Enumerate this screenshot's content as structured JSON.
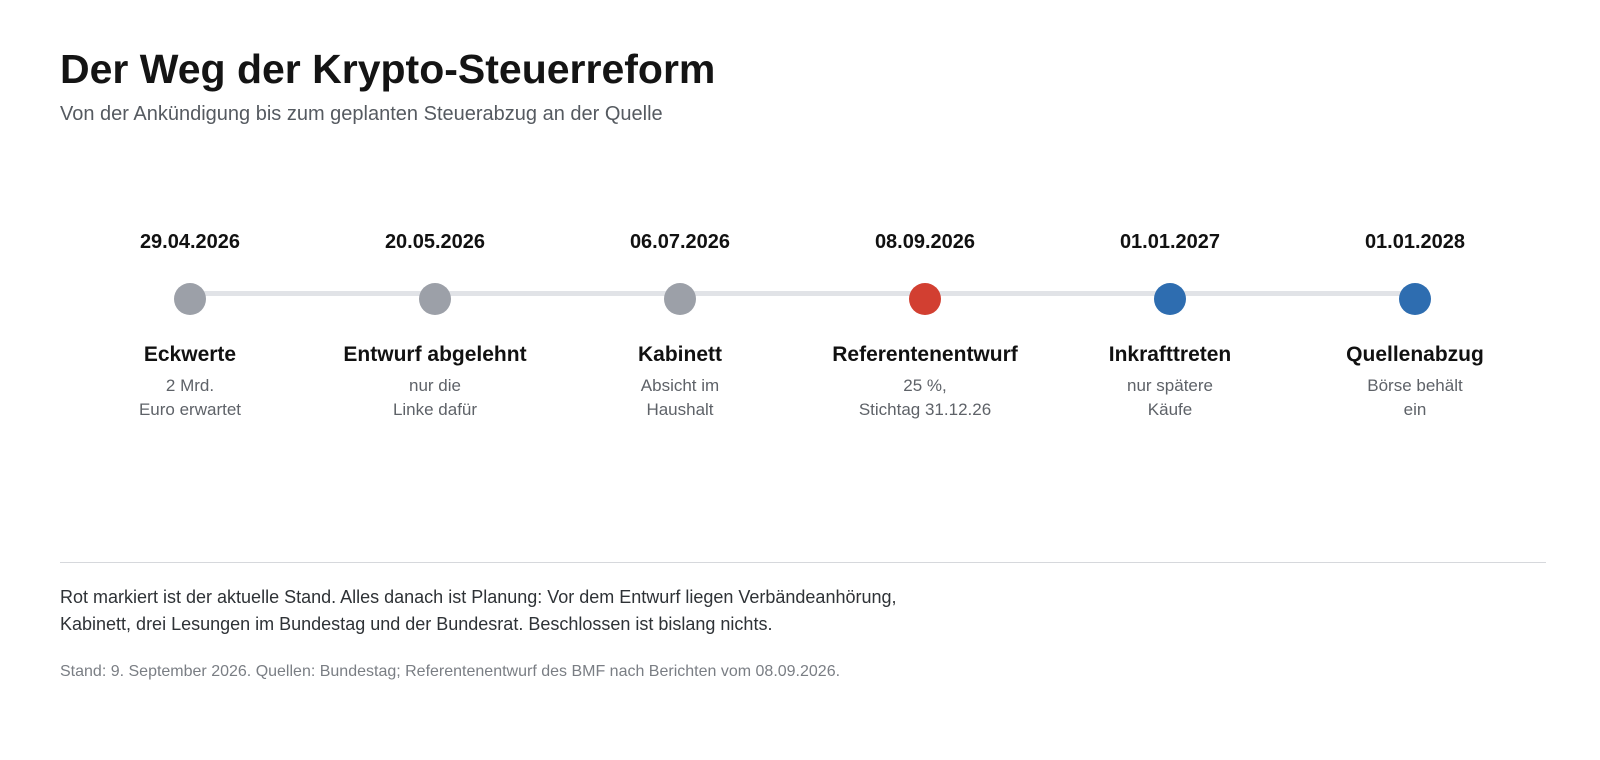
{
  "header": {
    "title": "Der Weg der Krypto-Steuerreform",
    "subtitle": "Von der Ankündigung bis zum geplanten Steuerabzug an der Quelle"
  },
  "colors": {
    "past": "#9ca0a8",
    "current": "#d23f31",
    "future": "#2e6db0",
    "track": "#e1e3e7"
  },
  "timeline": {
    "steps": [
      {
        "date": "29.04.2026",
        "label": "Eckwerte",
        "note_line1": "2 Mrd.",
        "note_line2": "Euro erwartet",
        "status": "past"
      },
      {
        "date": "20.05.2026",
        "label": "Entwurf abgelehnt",
        "note_line1": "nur die",
        "note_line2": "Linke dafür",
        "status": "past"
      },
      {
        "date": "06.07.2026",
        "label": "Kabinett",
        "note_line1": "Absicht im",
        "note_line2": "Haushalt",
        "status": "past"
      },
      {
        "date": "08.09.2026",
        "label": "Referentenentwurf",
        "note_line1": "25 %,",
        "note_line2": "Stichtag 31.12.26",
        "status": "current"
      },
      {
        "date": "01.01.2027",
        "label": "Inkrafttreten",
        "note_line1": "nur spätere",
        "note_line2": "Käufe",
        "status": "future"
      },
      {
        "date": "01.01.2028",
        "label": "Quellenabzug",
        "note_line1": "Börse behält",
        "note_line2": "ein",
        "status": "future"
      }
    ]
  },
  "footer": {
    "note_line1": "Rot markiert ist der aktuelle Stand. Alles danach ist Planung: Vor dem Entwurf liegen Verbändeanhörung,",
    "note_line2": "Kabinett, drei Lesungen im Bundestag und der Bundesrat. Beschlossen ist bislang nichts.",
    "source": "Stand: 9. September 2026. Quellen: Bundestag; Referentenentwurf des BMF nach Berichten vom 08.09.2026."
  }
}
